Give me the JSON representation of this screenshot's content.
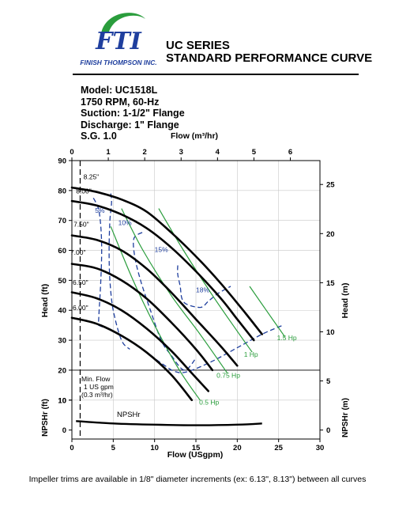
{
  "header": {
    "company": "FINISH THOMPSON INC.",
    "logo_text": "FTI",
    "title_line1": "UC SERIES",
    "title_line2": "STANDARD PERFORMANCE CURVE",
    "brand_blue": "#1f3f9e",
    "brand_green": "#2a9d3c"
  },
  "specs": {
    "model": "Model: UC1518L",
    "speed": "1750 RPM, 60-Hz",
    "suction": "Suction: 1-1/2\" Flange",
    "discharge": "Discharge: 1\" Flange",
    "sg": "S.G. 1.0"
  },
  "chart_data": {
    "type": "line",
    "top_axis": {
      "label": "Flow (m³/hr)",
      "ticks": [
        0,
        1,
        2,
        3,
        4,
        5,
        6
      ]
    },
    "x_axis": {
      "label": "Flow (USgpm)",
      "range": [
        0,
        30
      ],
      "ticks": [
        0,
        5,
        10,
        15,
        20,
        25,
        30
      ]
    },
    "y_left": {
      "label": "Head (ft)",
      "range": [
        0,
        90
      ],
      "ticks": [
        10,
        20,
        30,
        40,
        50,
        60,
        70,
        80,
        90
      ]
    },
    "y_right": {
      "label": "Head (m)",
      "ticks": [
        5,
        10,
        15,
        20,
        25
      ]
    },
    "y_left_lower": {
      "label": "NPSHr (ft)",
      "ticks": [
        0,
        10
      ]
    },
    "y_right_lower": {
      "label": "NPSHr (m)",
      "ticks": [
        0
      ]
    },
    "impeller_curves": [
      {
        "label": "8.25\"",
        "points": [
          [
            0,
            81
          ],
          [
            3,
            79.5
          ],
          [
            6,
            77
          ],
          [
            9,
            73
          ],
          [
            12,
            66
          ],
          [
            15,
            58
          ],
          [
            18,
            49
          ],
          [
            21,
            39
          ],
          [
            23,
            32
          ]
        ]
      },
      {
        "label": "8.00\"",
        "points": [
          [
            0,
            76.5
          ],
          [
            3,
            75
          ],
          [
            6,
            72
          ],
          [
            9,
            67.5
          ],
          [
            12,
            61
          ],
          [
            15,
            53
          ],
          [
            18,
            44
          ],
          [
            20,
            37
          ],
          [
            22,
            30
          ]
        ]
      },
      {
        "label": "7.50\"",
        "points": [
          [
            0,
            65
          ],
          [
            3,
            63.5
          ],
          [
            6,
            60
          ],
          [
            9,
            54
          ],
          [
            12,
            46
          ],
          [
            15,
            37
          ],
          [
            18,
            28
          ],
          [
            20,
            21.5
          ]
        ]
      },
      {
        "label": "7.00\"",
        "points": [
          [
            0,
            55.5
          ],
          [
            3,
            54
          ],
          [
            6,
            50
          ],
          [
            9,
            44
          ],
          [
            12,
            36
          ],
          [
            15,
            27
          ],
          [
            17,
            20
          ]
        ]
      },
      {
        "label": "6.50\"",
        "points": [
          [
            0,
            46
          ],
          [
            3,
            44
          ],
          [
            6,
            40
          ],
          [
            9,
            34
          ],
          [
            12,
            26.5
          ],
          [
            14.5,
            19
          ],
          [
            16.5,
            13
          ]
        ]
      },
      {
        "label": "6.00\"",
        "points": [
          [
            0,
            37.5
          ],
          [
            3,
            35.5
          ],
          [
            6,
            31.5
          ],
          [
            9,
            26
          ],
          [
            12,
            18.5
          ],
          [
            14.5,
            10
          ]
        ]
      }
    ],
    "efficiency_curves": [
      {
        "label": "5%",
        "points": [
          [
            2.6,
            77.5
          ],
          [
            3.2,
            74
          ],
          [
            3.5,
            68
          ],
          [
            3.6,
            60
          ],
          [
            3.5,
            50
          ],
          [
            3.3,
            40
          ],
          [
            3.2,
            35
          ]
        ]
      },
      {
        "label": "10%",
        "points": [
          [
            4.7,
            79
          ],
          [
            4.8,
            76
          ],
          [
            4.6,
            70
          ],
          [
            4.5,
            60
          ],
          [
            4.6,
            50
          ],
          [
            5,
            40
          ],
          [
            6,
            30
          ],
          [
            7,
            27
          ]
        ]
      },
      {
        "label": "15%",
        "points": [
          [
            8.5,
            66
          ],
          [
            7.5,
            64
          ],
          [
            7.6,
            58
          ],
          [
            8.3,
            50
          ],
          [
            9.5,
            40
          ],
          [
            10.8,
            30
          ],
          [
            12,
            25
          ],
          [
            13.6,
            20
          ],
          [
            15,
            24
          ]
        ]
      },
      {
        "label": "18%",
        "points": [
          [
            12.8,
            55
          ],
          [
            12.8,
            52
          ],
          [
            13.1,
            48
          ],
          [
            13.3,
            44
          ],
          [
            13.9,
            42
          ],
          [
            15.6,
            41
          ],
          [
            16.5,
            43
          ],
          [
            17.6,
            45.5
          ],
          [
            19.2,
            48
          ]
        ]
      },
      {
        "label": "edge",
        "points": [
          [
            3.2,
            35
          ],
          [
            5,
            33
          ],
          [
            7,
            30
          ],
          [
            9,
            26
          ],
          [
            11,
            22
          ],
          [
            12.5,
            19.5
          ],
          [
            14,
            19.5
          ],
          [
            17,
            23
          ],
          [
            20,
            27.5
          ],
          [
            23,
            32
          ],
          [
            25.5,
            35
          ]
        ]
      }
    ],
    "power_curves": [
      {
        "label": "0.5 Hp",
        "points": [
          [
            4.7,
            68
          ],
          [
            7.4,
            50
          ],
          [
            10,
            35
          ],
          [
            13,
            20
          ],
          [
            15.5,
            10
          ]
        ]
      },
      {
        "label": "0.75 Hp",
        "points": [
          [
            6,
            74
          ],
          [
            8.6,
            60
          ],
          [
            12,
            45
          ],
          [
            15.5,
            32
          ],
          [
            18.8,
            19
          ]
        ]
      },
      {
        "label": "1 Hp",
        "points": [
          [
            10.5,
            74
          ],
          [
            13.5,
            60
          ],
          [
            17,
            45
          ],
          [
            20,
            33
          ],
          [
            21.8,
            26
          ]
        ]
      },
      {
        "label": "1.5 Hp",
        "points": [
          [
            21.5,
            48
          ],
          [
            23.5,
            40
          ],
          [
            25.8,
            31
          ]
        ]
      }
    ],
    "npshr": {
      "label": "NPSHr",
      "points": [
        [
          0.5,
          3
        ],
        [
          5,
          2.2
        ],
        [
          10,
          1.8
        ],
        [
          15,
          1.6
        ],
        [
          20,
          1.8
        ],
        [
          23,
          2.2
        ]
      ]
    },
    "min_flow": {
      "x": 1,
      "note_line1": "Min. Flow",
      "note_line2": "1 US gpm",
      "note_line3": "(0.3 m³/hr)"
    },
    "grid": true
  },
  "footnote": "Impeller trims are available in 1/8\" diameter increments (ex: 6.13\", 8.13\") between all curves"
}
